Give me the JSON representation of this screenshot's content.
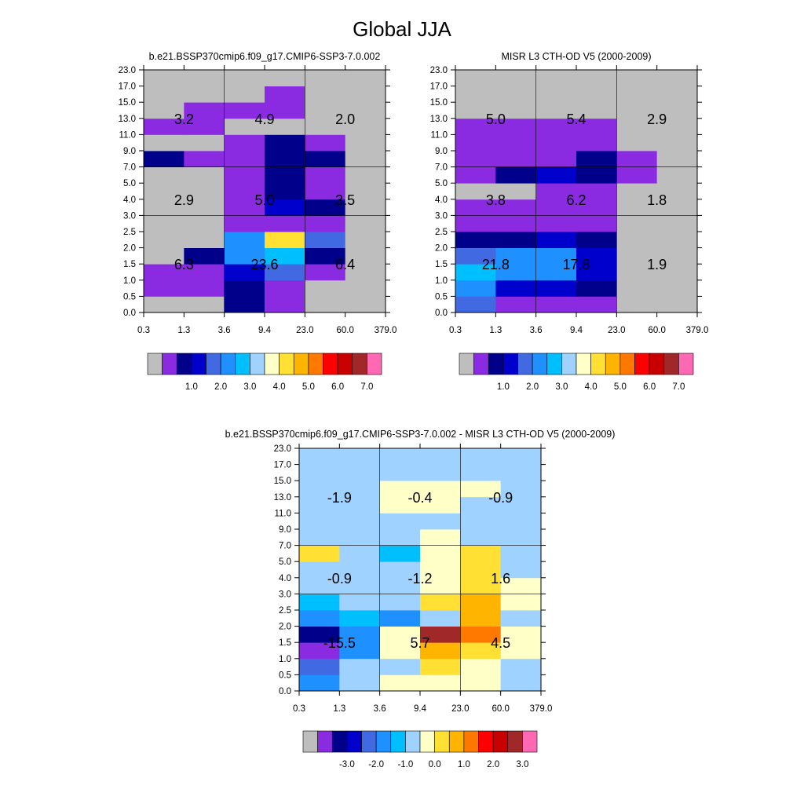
{
  "figure": {
    "title": "Global JJA"
  },
  "palettes": {
    "abs": [
      "#bebebe",
      "#8a2be2",
      "#00008b",
      "#0000cd",
      "#4169e1",
      "#1e90ff",
      "#00bfff",
      "#a0d2ff",
      "#ffffc8",
      "#ffe033",
      "#ffb400",
      "#ff7800",
      "#ff0000",
      "#c80000",
      "#a02828",
      "#ff69b4"
    ],
    "diff": [
      "#bebebe",
      "#8a2be2",
      "#00008b",
      "#0000cd",
      "#4169e1",
      "#1e90ff",
      "#00bfff",
      "#a0d2ff",
      "#ffffc8",
      "#ffe033",
      "#ffb400",
      "#ff7800",
      "#ff0000",
      "#c80000",
      "#a02828",
      "#ff69b4"
    ]
  },
  "chart_data": [
    {
      "type": "heatmap",
      "title": "b.e21.BSSP370cmip6.f09_g17.CMIP6-SSP3-7.0.002",
      "x_tick_labels": [
        "0.3",
        "1.3",
        "3.6",
        "9.4",
        "23.0",
        "60.0",
        "379.0"
      ],
      "y_tick_labels": [
        "0.0",
        "0.5",
        "1.0",
        "1.5",
        "2.0",
        "2.5",
        "3.0",
        "4.0",
        "5.0",
        "7.0",
        "9.0",
        "11.0",
        "13.0",
        "15.0",
        "17.0",
        "23.0"
      ],
      "cell_color_index": [
        [
          0,
          0,
          2,
          1,
          0,
          0
        ],
        [
          1,
          1,
          2,
          1,
          0,
          0
        ],
        [
          1,
          1,
          3,
          4,
          1,
          0
        ],
        [
          0,
          2,
          5,
          6,
          2,
          0
        ],
        [
          0,
          0,
          5,
          9,
          4,
          0
        ],
        [
          0,
          0,
          1,
          1,
          1,
          0
        ],
        [
          0,
          0,
          1,
          3,
          2,
          0
        ],
        [
          0,
          0,
          1,
          2,
          1,
          0
        ],
        [
          0,
          0,
          1,
          2,
          1,
          0
        ],
        [
          2,
          1,
          1,
          2,
          2,
          0
        ],
        [
          0,
          0,
          1,
          2,
          1,
          0
        ],
        [
          1,
          1,
          0,
          0,
          0,
          0
        ],
        [
          0,
          1,
          1,
          1,
          0,
          0
        ],
        [
          0,
          0,
          0,
          1,
          0,
          0
        ],
        [
          0,
          0,
          0,
          0,
          0,
          0
        ]
      ],
      "annotations": [
        {
          "x": 1.3,
          "y": 13.0,
          "text": "3.2"
        },
        {
          "x": 9.4,
          "y": 13.0,
          "text": "4.9"
        },
        {
          "x": 60.0,
          "y": 13.0,
          "text": "2.0"
        },
        {
          "x": 1.3,
          "y": 4.0,
          "text": "2.9"
        },
        {
          "x": 9.4,
          "y": 4.0,
          "text": "5.0"
        },
        {
          "x": 60.0,
          "y": 4.0,
          "text": "3.5"
        },
        {
          "x": 1.3,
          "y": 1.5,
          "text": "6.3"
        },
        {
          "x": 9.4,
          "y": 1.5,
          "text": "23.6"
        },
        {
          "x": 60.0,
          "y": 1.5,
          "text": "6.4"
        }
      ],
      "colorbar": {
        "palette": "abs",
        "labels": [
          "1.0",
          "2.0",
          "3.0",
          "4.0",
          "5.0",
          "6.0",
          "7.0"
        ]
      }
    },
    {
      "type": "heatmap",
      "title": "MISR L3 CTH-OD V5 (2000-2009)",
      "x_tick_labels": [
        "0.3",
        "1.3",
        "3.6",
        "9.4",
        "23.0",
        "60.0",
        "379.0"
      ],
      "y_tick_labels": [
        "0.0",
        "0.5",
        "1.0",
        "1.5",
        "2.0",
        "2.5",
        "3.0",
        "4.0",
        "5.0",
        "7.0",
        "9.0",
        "11.0",
        "13.0",
        "15.0",
        "17.0",
        "23.0"
      ],
      "cell_color_index": [
        [
          4,
          1,
          1,
          1,
          0,
          0
        ],
        [
          5,
          3,
          3,
          2,
          0,
          0
        ],
        [
          6,
          5,
          5,
          3,
          0,
          0
        ],
        [
          4,
          5,
          5,
          3,
          0,
          0
        ],
        [
          2,
          2,
          3,
          2,
          0,
          0
        ],
        [
          1,
          1,
          1,
          1,
          0,
          0
        ],
        [
          1,
          1,
          1,
          1,
          0,
          0
        ],
        [
          0,
          0,
          1,
          1,
          0,
          0
        ],
        [
          1,
          2,
          3,
          2,
          1,
          0
        ],
        [
          1,
          1,
          1,
          2,
          1,
          0
        ],
        [
          1,
          1,
          1,
          1,
          0,
          0
        ],
        [
          1,
          1,
          1,
          1,
          0,
          0
        ],
        [
          0,
          0,
          0,
          0,
          0,
          0
        ],
        [
          0,
          0,
          0,
          0,
          0,
          0
        ],
        [
          0,
          0,
          0,
          0,
          0,
          0
        ]
      ],
      "annotations": [
        {
          "x": 1.3,
          "y": 13.0,
          "text": "5.0"
        },
        {
          "x": 9.4,
          "y": 13.0,
          "text": "5.4"
        },
        {
          "x": 60.0,
          "y": 13.0,
          "text": "2.9"
        },
        {
          "x": 1.3,
          "y": 4.0,
          "text": "3.8"
        },
        {
          "x": 9.4,
          "y": 4.0,
          "text": "6.2"
        },
        {
          "x": 60.0,
          "y": 4.0,
          "text": "1.8"
        },
        {
          "x": 1.3,
          "y": 1.5,
          "text": "21.8"
        },
        {
          "x": 9.4,
          "y": 1.5,
          "text": "17.8"
        },
        {
          "x": 60.0,
          "y": 1.5,
          "text": "1.9"
        }
      ],
      "colorbar": {
        "palette": "abs",
        "labels": [
          "1.0",
          "2.0",
          "3.0",
          "4.0",
          "5.0",
          "6.0",
          "7.0"
        ]
      }
    },
    {
      "type": "heatmap",
      "title": "b.e21.BSSP370cmip6.f09_g17.CMIP6-SSP3-7.0.002 - MISR L3 CTH-OD V5 (2000-2009)",
      "x_tick_labels": [
        "0.3",
        "1.3",
        "3.6",
        "9.4",
        "23.0",
        "60.0",
        "379.0"
      ],
      "y_tick_labels": [
        "0.0",
        "0.5",
        "1.0",
        "1.5",
        "2.0",
        "2.5",
        "3.0",
        "4.0",
        "5.0",
        "7.0",
        "9.0",
        "11.0",
        "13.0",
        "15.0",
        "17.0",
        "23.0"
      ],
      "cell_color_index": [
        [
          5,
          7,
          8,
          8,
          8,
          7
        ],
        [
          4,
          7,
          7,
          9,
          8,
          7
        ],
        [
          1,
          5,
          8,
          10,
          9,
          8
        ],
        [
          2,
          5,
          8,
          14,
          11,
          8
        ],
        [
          5,
          6,
          5,
          7,
          10,
          7
        ],
        [
          6,
          7,
          7,
          9,
          10,
          8
        ],
        [
          7,
          7,
          7,
          8,
          9,
          8
        ],
        [
          7,
          7,
          7,
          8,
          9,
          7
        ],
        [
          9,
          7,
          6,
          8,
          9,
          7
        ],
        [
          7,
          7,
          7,
          8,
          7,
          7
        ],
        [
          7,
          7,
          7,
          7,
          7,
          7
        ],
        [
          7,
          7,
          8,
          8,
          7,
          7
        ],
        [
          7,
          7,
          8,
          8,
          8,
          7
        ],
        [
          7,
          7,
          7,
          7,
          7,
          7
        ],
        [
          7,
          7,
          7,
          7,
          7,
          7
        ]
      ],
      "annotations": [
        {
          "x": 1.3,
          "y": 13.0,
          "text": "-1.9"
        },
        {
          "x": 9.4,
          "y": 13.0,
          "text": "-0.4"
        },
        {
          "x": 60.0,
          "y": 13.0,
          "text": "-0.9"
        },
        {
          "x": 1.3,
          "y": 4.0,
          "text": "-0.9"
        },
        {
          "x": 9.4,
          "y": 4.0,
          "text": "-1.2"
        },
        {
          "x": 60.0,
          "y": 4.0,
          "text": "1.6"
        },
        {
          "x": 1.3,
          "y": 1.5,
          "text": "-15.5"
        },
        {
          "x": 9.4,
          "y": 1.5,
          "text": "5.7"
        },
        {
          "x": 60.0,
          "y": 1.5,
          "text": "4.5"
        }
      ],
      "colorbar": {
        "palette": "diff",
        "labels": [
          "-3.0",
          "-2.0",
          "-1.0",
          "0.0",
          "1.0",
          "2.0",
          "3.0"
        ]
      }
    }
  ]
}
